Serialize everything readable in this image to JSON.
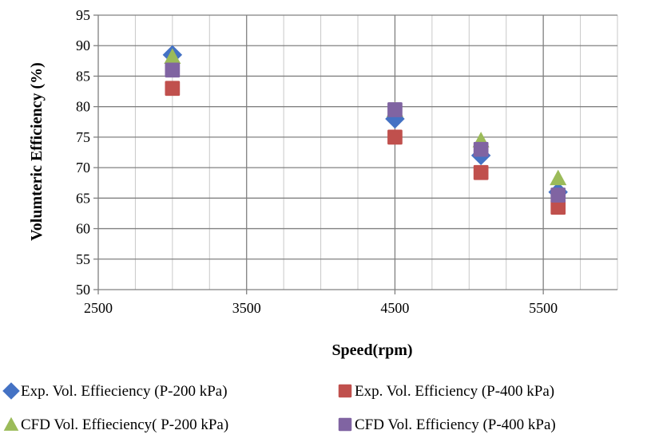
{
  "chart_data": {
    "type": "scatter",
    "title": "",
    "xlabel": "Speed(rpm)",
    "ylabel": "Volumteric Efficiency (%)",
    "xlim": [
      2500,
      6000
    ],
    "ylim": [
      50,
      95
    ],
    "x_ticks": [
      2500,
      3500,
      4500,
      5500
    ],
    "y_ticks": [
      50,
      55,
      60,
      65,
      70,
      75,
      80,
      85,
      90,
      95
    ],
    "grid": true,
    "legend_position": "bottom",
    "series": [
      {
        "name": "Exp. Vol. Effieciency (P-200 kPa)",
        "marker": "diamond",
        "color": "#4472C4",
        "x": [
          3000,
          4500,
          5080,
          5600
        ],
        "y": [
          88.5,
          78,
          72,
          66
        ]
      },
      {
        "name": "Exp. Vol. Efficiency (P-400 kPa)",
        "marker": "square",
        "color": "#C0504D",
        "x": [
          3000,
          4500,
          5080,
          5600
        ],
        "y": [
          83,
          75,
          69.2,
          63.5
        ]
      },
      {
        "name": "CFD Vol. Effieciency( P-200 kPa)",
        "marker": "triangle",
        "color": "#9BBB59",
        "x": [
          3000,
          4500,
          5080,
          5600
        ],
        "y": [
          88.2,
          79.5,
          74.5,
          68.3
        ]
      },
      {
        "name": "CFD Vol. Efficiency (P-400 kPa)",
        "marker": "square",
        "color": "#8064A2",
        "x": [
          3000,
          4500,
          5080,
          5600
        ],
        "y": [
          86,
          79.5,
          73,
          65.5
        ]
      }
    ]
  }
}
